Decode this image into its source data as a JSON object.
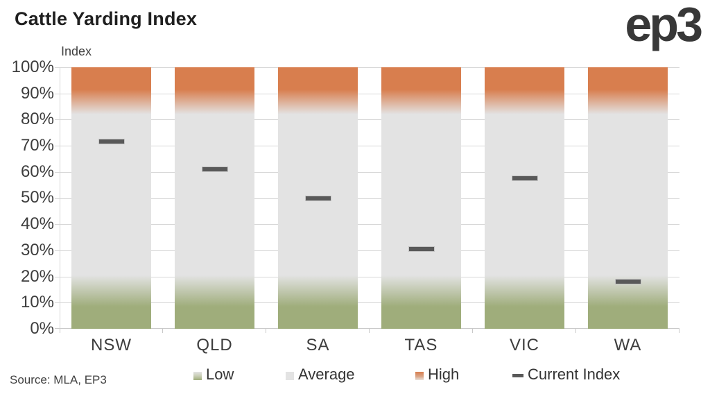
{
  "header": {
    "title": "Cattle Yarding Index",
    "logo": "ep3"
  },
  "chart_data": {
    "type": "bar",
    "title": "Cattle Yarding Index",
    "xlabel": "",
    "ylabel": "Index",
    "categories": [
      "NSW",
      "QLD",
      "SA",
      "TAS",
      "VIC",
      "WA"
    ],
    "values": [
      71.5,
      61,
      50,
      30.5,
      57.5,
      18
    ],
    "series": [
      {
        "name": "Current Index",
        "values": [
          71.5,
          61,
          50,
          30.5,
          57.5,
          18
        ]
      }
    ],
    "zones": {
      "low": {
        "label": "Low",
        "from": 0,
        "to": 20
      },
      "average": {
        "label": "Average",
        "from": 20,
        "to": 82
      },
      "high": {
        "label": "High",
        "from": 82,
        "to": 100
      }
    },
    "ylim": [
      0,
      100
    ],
    "yticks": [
      "100%",
      "90%",
      "80%",
      "70%",
      "60%",
      "50%",
      "40%",
      "30%",
      "20%",
      "10%",
      "0%"
    ],
    "grid": true,
    "legend_position": "bottom",
    "colors": {
      "low": "#9fad7b",
      "average": "#e3e3e3",
      "high": "#d87e4e",
      "current": "#595959"
    }
  },
  "legend": {
    "items": [
      {
        "label": "Low"
      },
      {
        "label": "Average"
      },
      {
        "label": "High"
      },
      {
        "label": "Current Index"
      }
    ]
  },
  "footer": {
    "source": "Source: MLA, EP3"
  }
}
